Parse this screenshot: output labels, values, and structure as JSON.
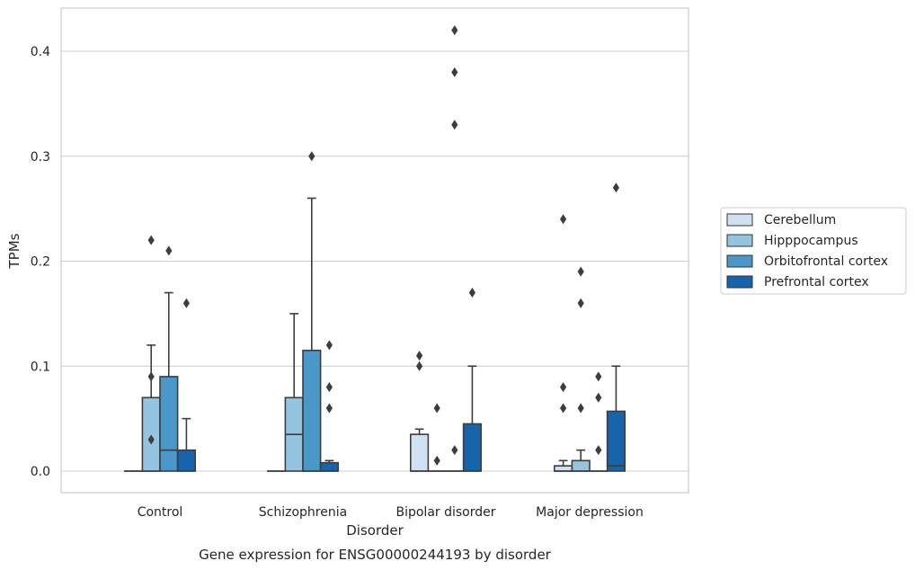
{
  "chart_data": {
    "type": "boxplot",
    "caption": "Gene expression for ENSG00000244193 by disorder",
    "xlabel": "Disorder",
    "ylabel": "TPMs",
    "ylim": [
      -0.02,
      0.44
    ],
    "yticks": [
      0.0,
      0.1,
      0.2,
      0.3,
      0.4
    ],
    "ytick_labels": [
      "0.0",
      "0.1",
      "0.2",
      "0.3",
      "0.4"
    ],
    "grid": "horizontal",
    "legend_position": "right",
    "categories": [
      "Control",
      "Schizophrenia",
      "Bipolar disorder",
      "Major depression"
    ],
    "series": [
      {
        "name": "Cerebellum",
        "color": "#d0e1f2",
        "boxes": [
          {
            "q1": 0,
            "median": 0,
            "q3": 0,
            "whisker_low": 0,
            "whisker_high": 0,
            "outliers": []
          },
          {
            "q1": 0,
            "median": 0,
            "q3": 0,
            "whisker_low": 0,
            "whisker_high": 0,
            "outliers": []
          },
          {
            "q1": 0,
            "median": 0,
            "q3": 0.035,
            "whisker_low": 0,
            "whisker_high": 0.04,
            "outliers": [
              0.1,
              0.11
            ]
          },
          {
            "q1": 0,
            "median": 0,
            "q3": 0.005,
            "whisker_low": 0,
            "whisker_high": 0.01,
            "outliers": [
              0.06,
              0.08,
              0.24
            ]
          }
        ]
      },
      {
        "name": "Hipppocampus",
        "color": "#94c4df",
        "boxes": [
          {
            "q1": 0,
            "median": 0,
            "q3": 0.07,
            "whisker_low": 0,
            "whisker_high": 0.12,
            "outliers": [
              0.03,
              0.09,
              0.22
            ]
          },
          {
            "q1": 0,
            "median": 0.035,
            "q3": 0.07,
            "whisker_low": 0,
            "whisker_high": 0.15,
            "outliers": []
          },
          {
            "q1": 0,
            "median": 0,
            "q3": 0,
            "whisker_low": 0,
            "whisker_high": 0,
            "outliers": [
              0.01,
              0.06
            ]
          },
          {
            "q1": 0,
            "median": 0,
            "q3": 0.01,
            "whisker_low": 0,
            "whisker_high": 0.02,
            "outliers": [
              0.06,
              0.16,
              0.19
            ]
          }
        ]
      },
      {
        "name": "Orbitofrontal cortex",
        "color": "#4a98c9",
        "boxes": [
          {
            "q1": 0,
            "median": 0.02,
            "q3": 0.09,
            "whisker_low": 0,
            "whisker_high": 0.17,
            "outliers": [
              0.21
            ]
          },
          {
            "q1": 0,
            "median": 0,
            "q3": 0.115,
            "whisker_low": 0,
            "whisker_high": 0.26,
            "outliers": [
              0.3
            ]
          },
          {
            "q1": 0,
            "median": 0,
            "q3": 0,
            "whisker_low": 0,
            "whisker_high": 0,
            "outliers": [
              0.02,
              0.33,
              0.38,
              0.42
            ]
          },
          {
            "q1": 0,
            "median": 0,
            "q3": 0,
            "whisker_low": 0,
            "whisker_high": 0,
            "outliers": [
              0.02,
              0.07,
              0.09
            ]
          }
        ]
      },
      {
        "name": "Prefrontal cortex",
        "color": "#1764ab",
        "boxes": [
          {
            "q1": 0,
            "median": 0,
            "q3": 0.02,
            "whisker_low": 0,
            "whisker_high": 0.05,
            "outliers": [
              0.16
            ]
          },
          {
            "q1": 0,
            "median": 0,
            "q3": 0.008,
            "whisker_low": 0,
            "whisker_high": 0.01,
            "outliers": [
              0.06,
              0.08,
              0.12
            ]
          },
          {
            "q1": 0,
            "median": 0,
            "q3": 0.045,
            "whisker_low": 0,
            "whisker_high": 0.1,
            "outliers": [
              0.17
            ]
          },
          {
            "q1": 0,
            "median": 0.005,
            "q3": 0.057,
            "whisker_low": 0,
            "whisker_high": 0.1,
            "outliers": [
              0.27
            ]
          }
        ]
      }
    ]
  }
}
